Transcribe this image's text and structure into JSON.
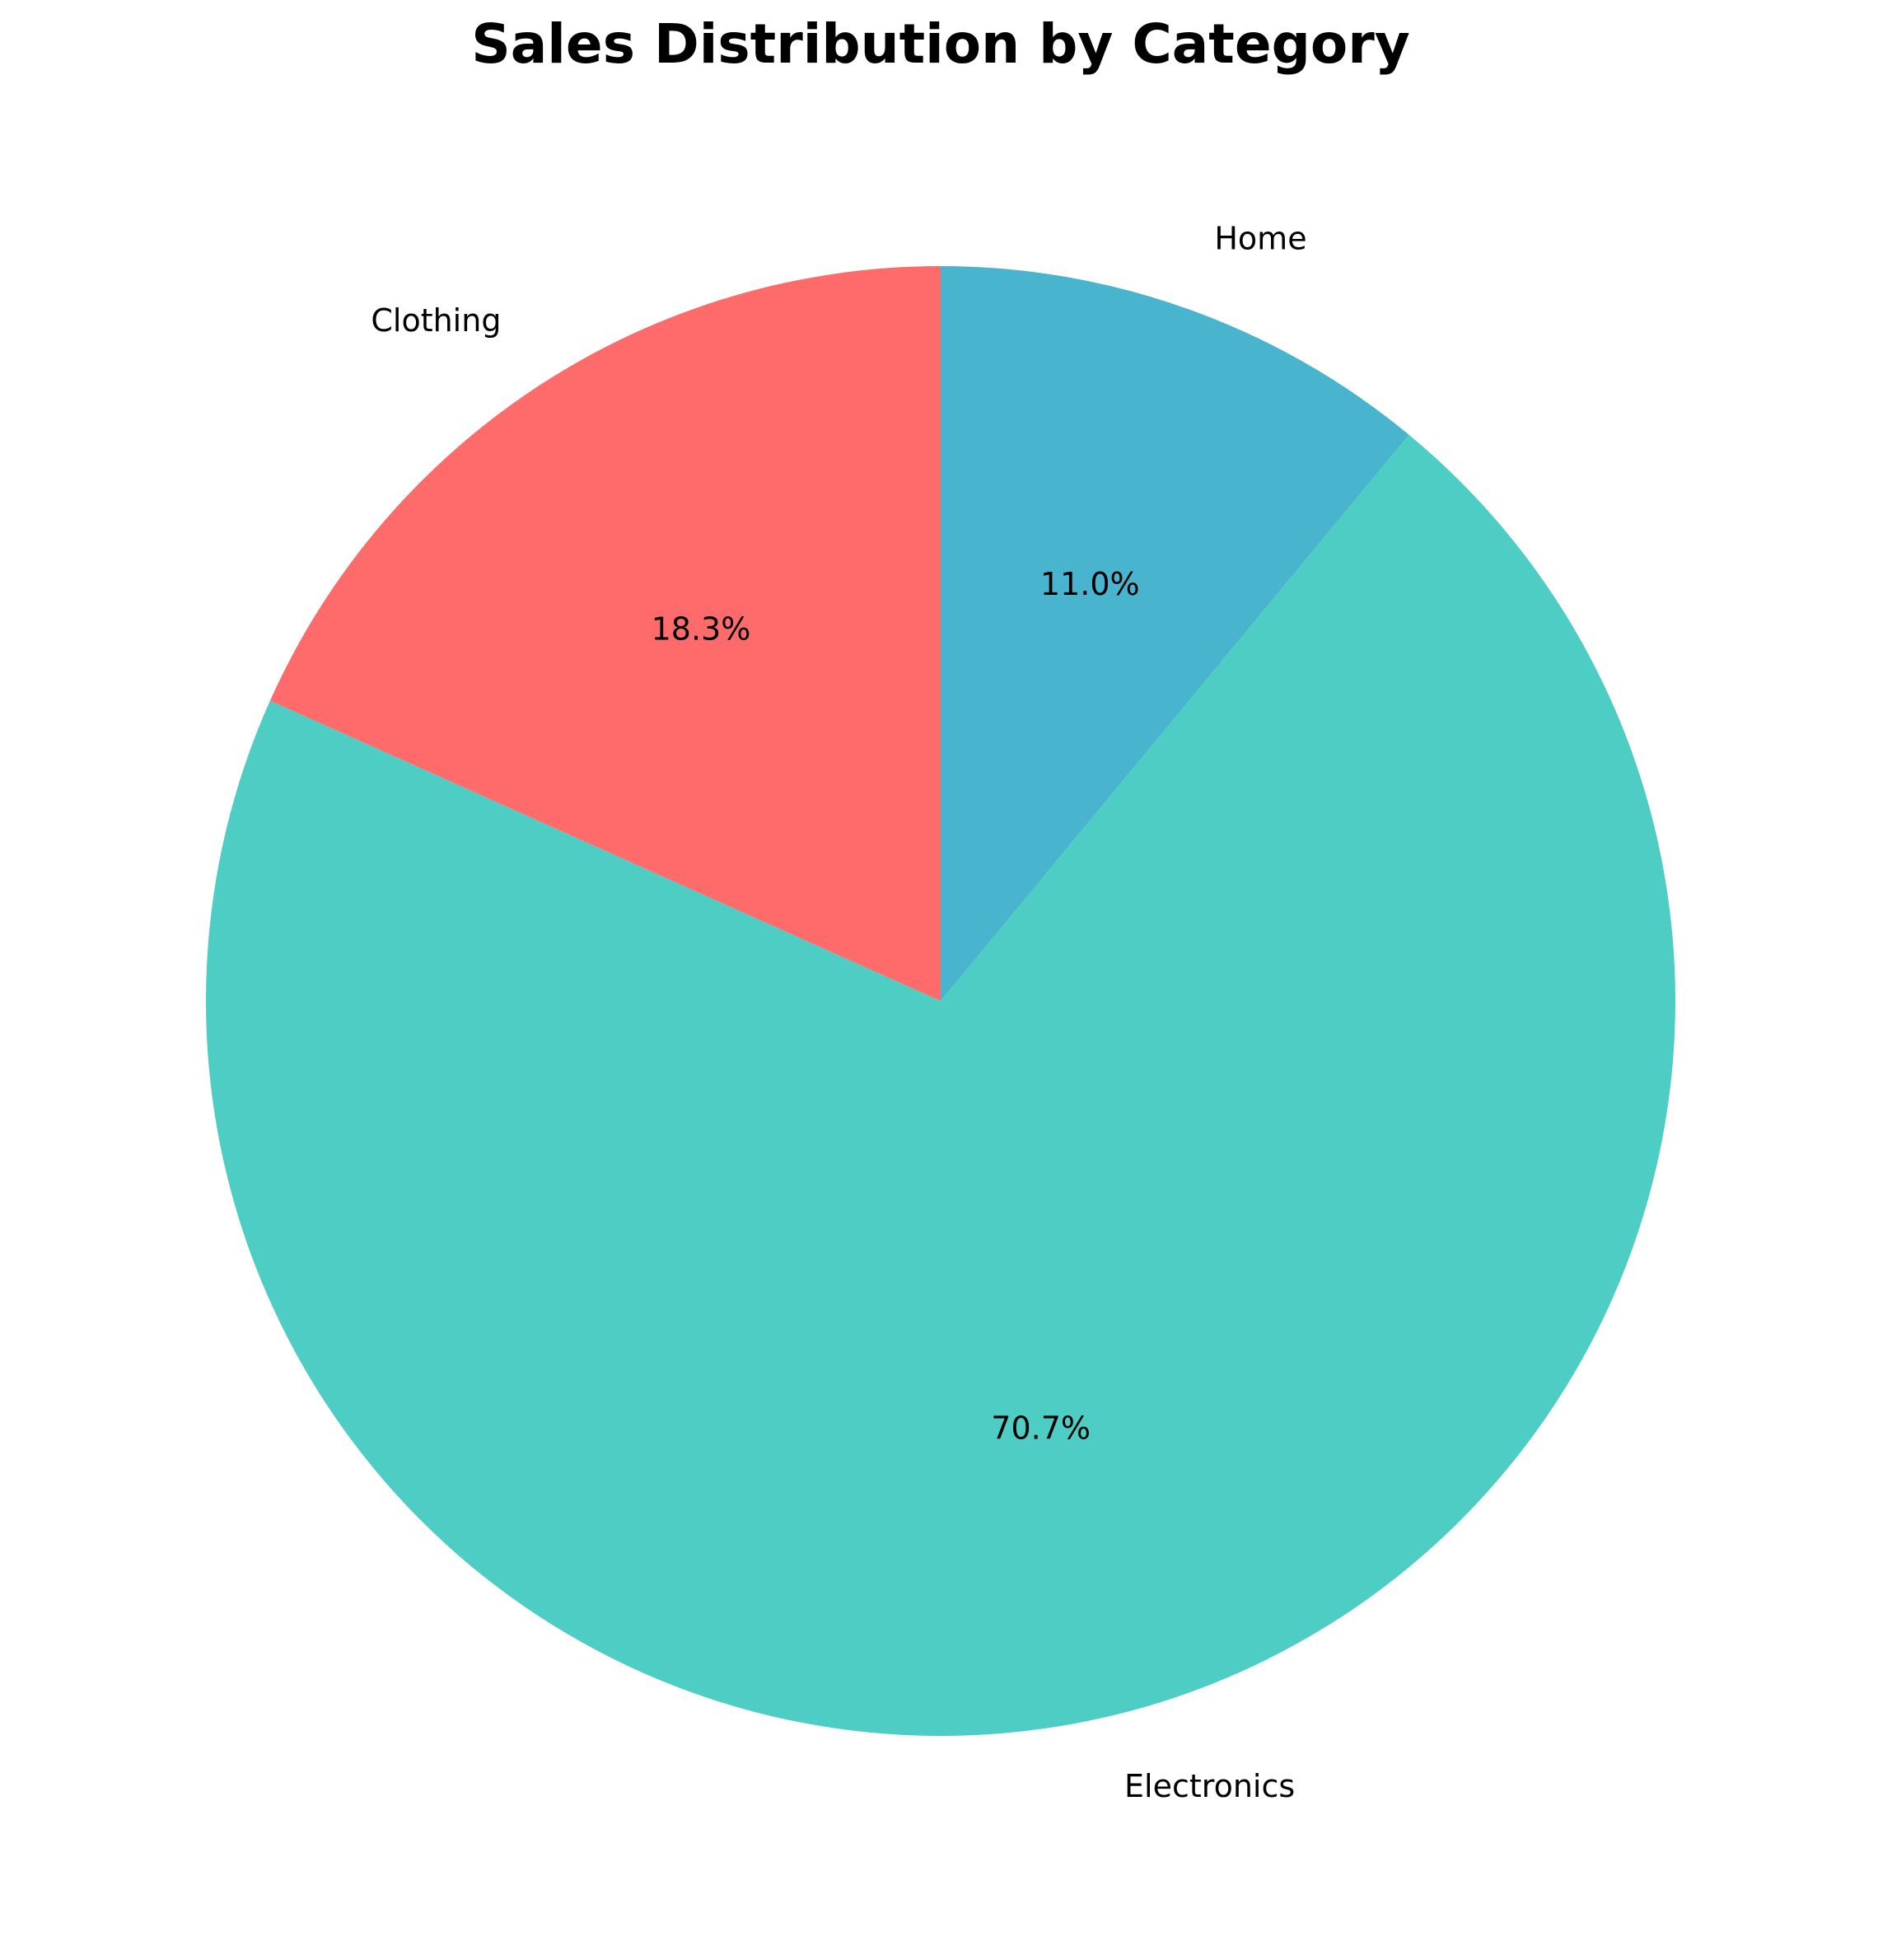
{
  "chart_data": {
    "type": "pie",
    "title": "Sales Distribution by Category",
    "labels": [
      "Home",
      "Electronics",
      "Clothing"
    ],
    "values": [
      11.0,
      70.7,
      18.3
    ],
    "percent_labels": [
      "11.0%",
      "70.7%",
      "18.3%"
    ],
    "colors": [
      "#48B4CE",
      "#4ECDC4",
      "#FF6B6B"
    ],
    "start_angle_deg": 90,
    "direction": "clockwise",
    "legend": "none"
  }
}
